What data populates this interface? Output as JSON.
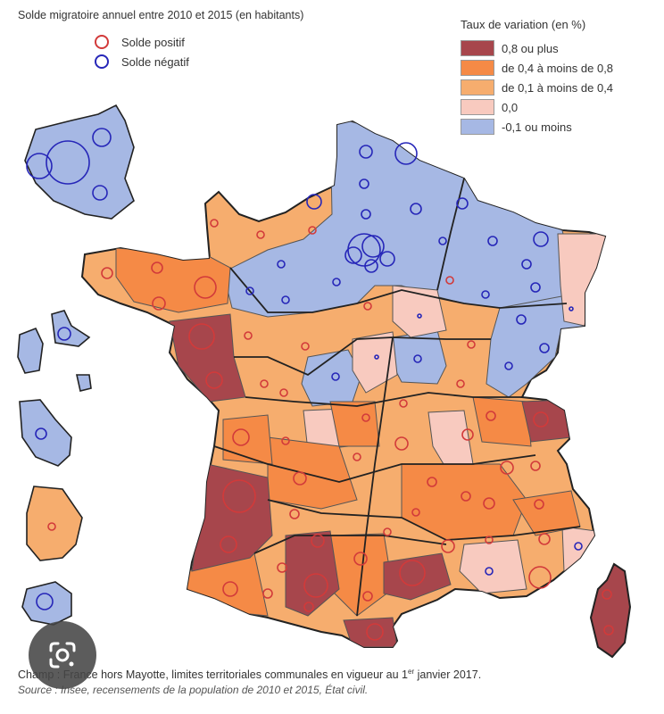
{
  "title": "Solde migratoire annuel entre 2010 et 2015 (en habitants)",
  "circle_legend": [
    {
      "label": "Solde positif",
      "color": "#d23a3a"
    },
    {
      "label": "Solde négatif",
      "color": "#2626b8"
    }
  ],
  "color_legend": {
    "title": "Taux de variation (en %)",
    "items": [
      {
        "label": "0,8 ou plus",
        "color": "#a7464c"
      },
      {
        "label": "de 0,4 à moins de 0,8",
        "color": "#f58a46"
      },
      {
        "label": "de 0,1 à moins de 0,4",
        "color": "#f6ad6e"
      },
      {
        "label": "0,0",
        "color": "#f8cabf"
      },
      {
        "label": "-0,1 ou moins",
        "color": "#a6b8e4"
      }
    ]
  },
  "note": {
    "before": "Champ : France hors Mayotte, limites territoriales communales en vigueur au 1",
    "sup": "er",
    "after": " janvier 2017."
  },
  "source": "Source : Insee, recensements de la population de 2010 et 2015, État civil.",
  "lens_icon": "google-lens-icon"
}
